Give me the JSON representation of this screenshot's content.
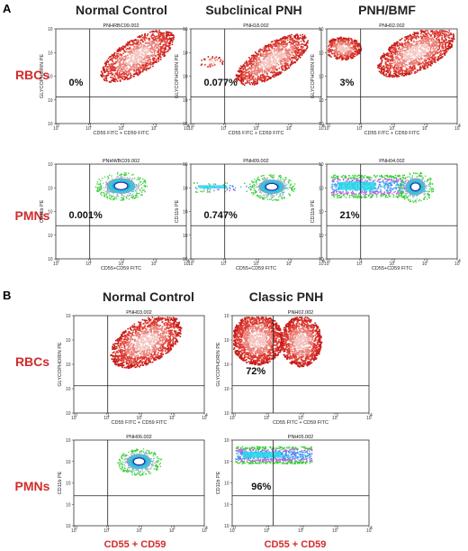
{
  "panel_a": {
    "letter": "A",
    "columns": [
      "Normal Control",
      "Subclinical PNH",
      "PNH/BMF"
    ],
    "rows": [
      "RBCs",
      "PMNs"
    ],
    "plots": [
      {
        "title": "PNHRBC09.002",
        "xlabel": "CD55 FITC + CD59 FITC",
        "ylabel": "GLYCOPHORIN PE",
        "value": "0%",
        "style": "rbc"
      },
      {
        "title": "PNH18.002",
        "xlabel": "CD55 FITC + CD59 FITC",
        "ylabel": "GLYCOPHORIN PE",
        "value": "0.077%",
        "style": "rbc"
      },
      {
        "title": "PNH02.002",
        "xlabel": "CD55 FITC + CD59 FITC",
        "ylabel": "GLYCOPHORIN PE",
        "value": "3%",
        "style": "rbc"
      },
      {
        "title": "PNHWBC09.002",
        "xlabel": "CD55+CD59 FITC",
        "ylabel": "CD11b PE",
        "value": "0.001%",
        "style": "pmn"
      },
      {
        "title": "PNH09.002",
        "xlabel": "CD55+CD59 FITC",
        "ylabel": "CD11b PE",
        "value": "0.747%",
        "style": "pmn"
      },
      {
        "title": "PNH04.002",
        "xlabel": "CD55+CD59 FITC",
        "ylabel": "CD11b PE",
        "value": "21%",
        "style": "pmn"
      }
    ]
  },
  "panel_b": {
    "letter": "B",
    "columns": [
      "Normal Control",
      "Classic PNH"
    ],
    "rows": [
      "RBCs",
      "PMNs"
    ],
    "plots": [
      {
        "title": "PNH03.002",
        "xlabel": "CD55 FITC + CD59 FITC",
        "ylabel": "GLYCOPHORIN PE",
        "value": "",
        "style": "rbc"
      },
      {
        "title": "PNH02.002",
        "xlabel": "CD55 FITC + CD59 FITC",
        "ylabel": "GLYCOPHORIN PE",
        "value": "72%",
        "style": "rbc"
      },
      {
        "title": "PNH06.002",
        "xlabel": "",
        "ylabel": "CD11b PE",
        "value": "",
        "style": "pmn"
      },
      {
        "title": "PNH05.002",
        "xlabel": "",
        "ylabel": "CD11b PE",
        "value": "96%",
        "style": "pmn"
      }
    ],
    "bottom_labels": [
      "CD55 + CD59",
      "CD55 + CD59"
    ]
  },
  "tick_labels": [
    "10",
    "1",
    "2",
    "3",
    "4"
  ],
  "colors": {
    "rbc_red": "#d9231f",
    "rbc_light": "#f3b0aa",
    "label_red": "#d22b2b"
  }
}
